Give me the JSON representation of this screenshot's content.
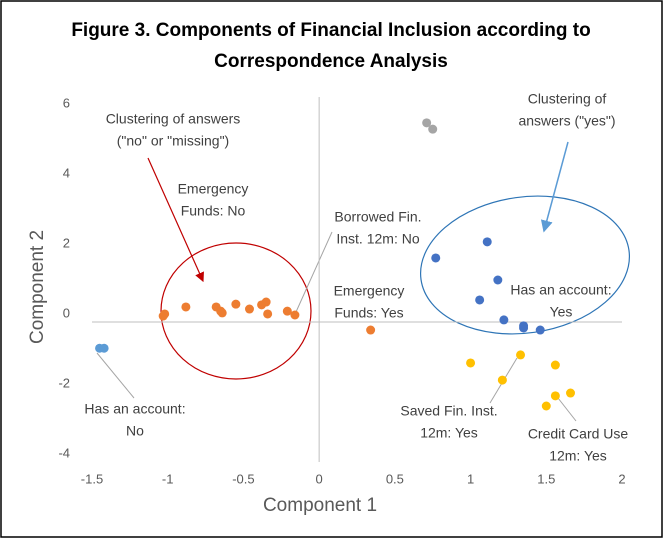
{
  "chart_data": {
    "type": "scatter",
    "title": [
      "Figure 3. Components of Financial Inclusion according to",
      "Correspondence Analysis"
    ],
    "x_label": "Component 1",
    "y_label": "Component 2",
    "xlim": [
      -1.5,
      2
    ],
    "xticks": [
      -1.5,
      -1,
      -0.5,
      0,
      0.5,
      1,
      1.5,
      2
    ],
    "ylim": [
      -4,
      6
    ],
    "yticks": [
      -4,
      -2,
      0,
      2,
      4,
      6
    ],
    "series": [
      {
        "color": "#5B9BD5",
        "x": [
          -1.45,
          -1.42
        ],
        "values": [
          -0.75,
          -0.75
        ]
      },
      {
        "color": "#ED7D31",
        "x": [
          -1.03,
          -1.02,
          -0.88,
          -0.68,
          -0.65,
          -0.64,
          -0.55,
          -0.46,
          -0.38,
          -0.35,
          -0.34,
          -0.21,
          -0.16,
          0.34
        ],
        "values": [
          0.17,
          0.23,
          0.43,
          0.43,
          0.31,
          0.26,
          0.51,
          0.37,
          0.49,
          0.57,
          0.23,
          0.31,
          0.2,
          -0.23
        ]
      },
      {
        "color": "#A5A5A5",
        "x": [
          0.71,
          0.75
        ],
        "values": [
          5.69,
          5.51
        ]
      },
      {
        "color": "#4472C4",
        "x": [
          0.77,
          1.11,
          1.18,
          1.06,
          1.22,
          1.35,
          1.35,
          1.46
        ],
        "values": [
          1.83,
          2.29,
          1.2,
          0.63,
          0.06,
          -0.11,
          -0.17,
          -0.23
        ]
      },
      {
        "color": "#FFC000",
        "x": [
          1.0,
          1.21,
          1.33,
          1.56,
          1.56,
          1.66,
          1.5
        ],
        "values": [
          -1.17,
          -1.66,
          -0.94,
          -1.23,
          -2.11,
          -2.03,
          -2.4
        ]
      }
    ],
    "annotations": [
      [
        "Clustering of answers",
        "(\"no\" or \"missing\")"
      ],
      [
        "Clustering of",
        "answers (\"yes\")"
      ],
      [
        "Emergency",
        "Funds: No"
      ],
      [
        "Borrowed Fin.",
        "Inst. 12m: No"
      ],
      [
        "Emergency",
        "Funds: Yes"
      ],
      [
        "Has an account:",
        "Yes"
      ],
      [
        "Has an account:",
        "No"
      ],
      [
        "Saved Fin. Inst.",
        "12m: Yes"
      ],
      [
        "Credit Card Use",
        "12m: Yes"
      ]
    ]
  }
}
